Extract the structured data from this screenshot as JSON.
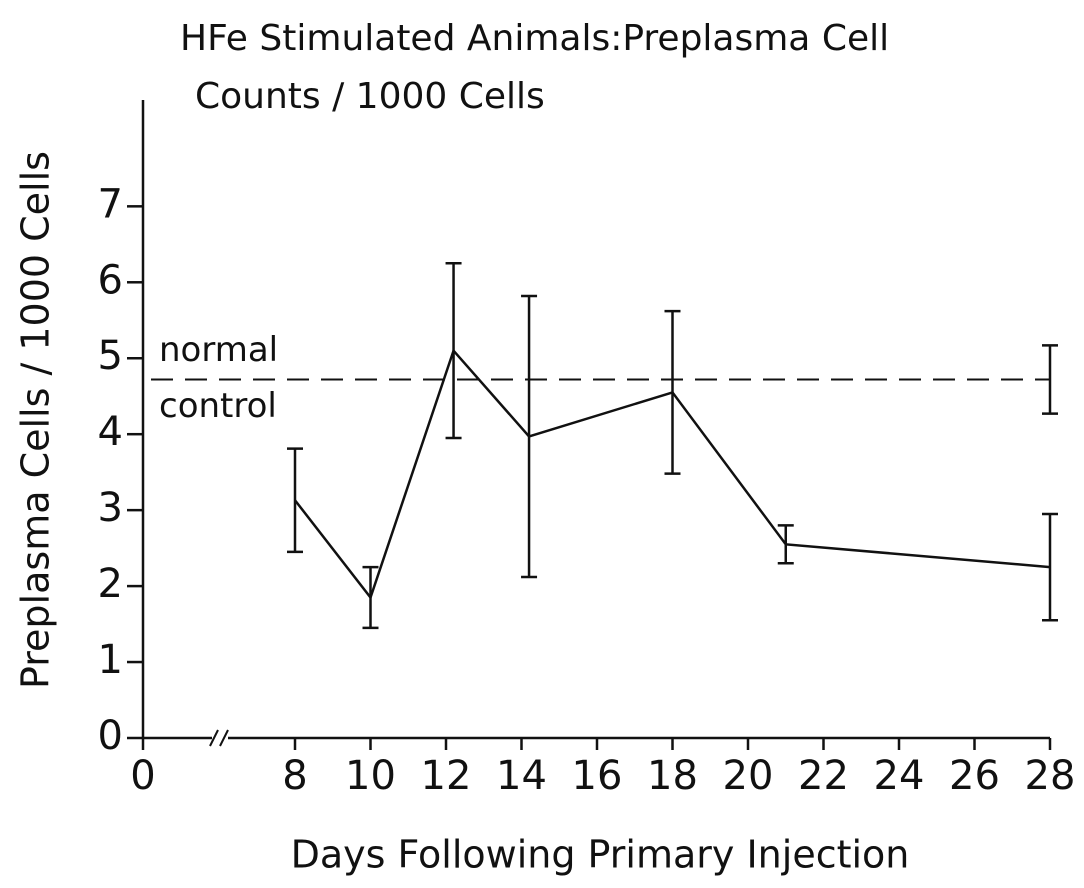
{
  "chart_data": {
    "type": "line",
    "title": [
      "HFe Stimulated Animals:Preplasma Cell",
      "Counts / 1000 Cells"
    ],
    "x_label": "Days Following Primary Injection",
    "y_label": "Preplasma Cells / 1000 Cells",
    "x": [
      8,
      10,
      12.2,
      14.2,
      18,
      21,
      28
    ],
    "values": [
      3.13,
      1.85,
      5.1,
      3.97,
      4.55,
      2.55,
      2.25
    ],
    "errors": [
      0.68,
      0.4,
      1.15,
      1.85,
      1.07,
      0.25,
      0.7
    ],
    "color": "#111111",
    "xlim": [
      0,
      28
    ],
    "x_break": [
      0,
      8
    ],
    "xticks": [
      0,
      8,
      10,
      12,
      14,
      16,
      18,
      20,
      22,
      24,
      26,
      28
    ],
    "ylim": [
      0,
      8.4
    ],
    "yticks": [
      0,
      1,
      2,
      3,
      4,
      5,
      6,
      7
    ],
    "reference": {
      "labels": [
        "normal",
        "control"
      ],
      "value": 4.72,
      "error": 0.45,
      "x": 28
    }
  }
}
